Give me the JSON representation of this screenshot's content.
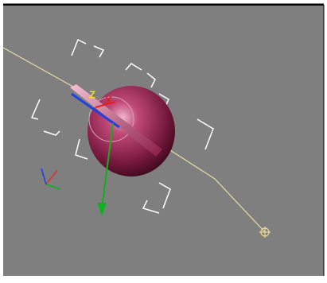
{
  "viewport": {
    "gizmo_labels": [
      "Z",
      "X"
    ]
  }
}
